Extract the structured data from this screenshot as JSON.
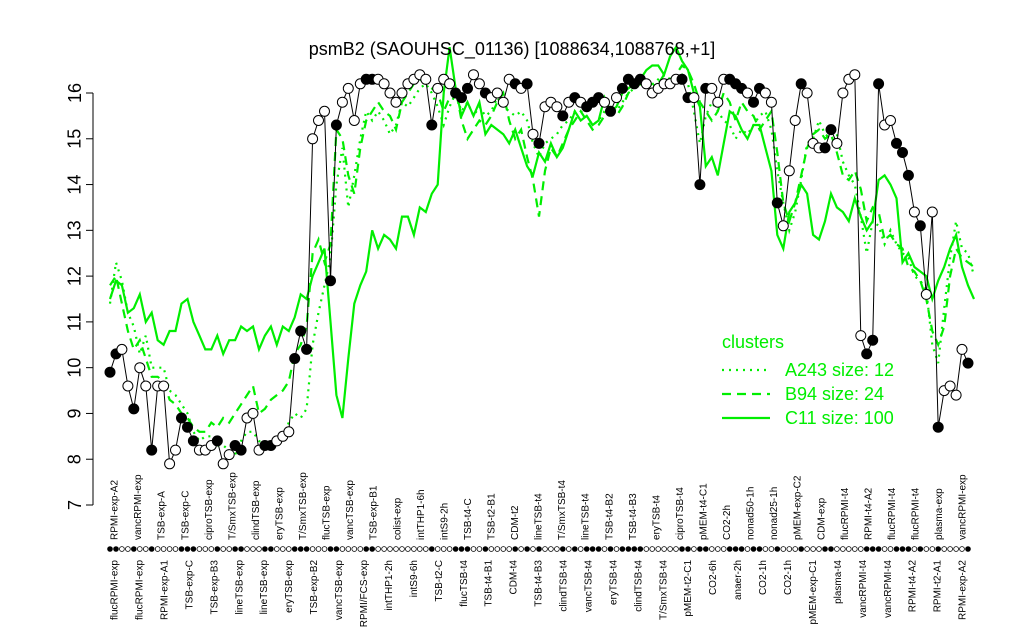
{
  "chart_data": {
    "type": "line",
    "title": "psmB2 (SAOUHSC_01136) [1088634,1088768,+1]",
    "ylim": [
      7,
      16.3
    ],
    "yticks": [
      7,
      8,
      9,
      10,
      11,
      12,
      13,
      14,
      15,
      16
    ],
    "grid": false,
    "legend": {
      "title": "clusters",
      "position": "right",
      "entries": [
        {
          "label": "A243 size: 12",
          "style": "dotted",
          "color": "#00ee00"
        },
        {
          "label": "B94 size: 24",
          "style": "dashed",
          "color": "#00ee00"
        },
        {
          "label": "C11 size: 100",
          "style": "solid",
          "color": "#00ee00"
        }
      ]
    },
    "labels_top": [
      "RPMI-exp-A2",
      "vancRPMI-exp",
      "TSB-exp-A",
      "TSB-exp-C",
      "ciproTSB-exp",
      "T/SmxTSB-exp",
      "clindTSB-exp",
      "eryTSB-exp",
      "T/SmxTSB-exp",
      "flucTSB-exp",
      "vancTSB-exp",
      "TSB-exp-B1",
      "colist-exp",
      "intTHP1-6h",
      "intS9-2h",
      "TSB-t4-C",
      "TSB-t2-B1",
      "CDM-t2",
      "lineTSB-t4",
      "T/SmxTSB-t4",
      "lineTSB-t4",
      "TSB-t4-B2",
      "TSB-t4-B3",
      "eryTSB-t4",
      "ciproTSB-t4",
      "pMEM-t4-C1",
      "CO2-2h",
      "nonad50-1h",
      "nonad25-1h",
      "pMEM-exp-C2",
      "CDM-exp",
      "flucRPMI-t4",
      "RPMI-t4-A2",
      "flucRPMI-t4",
      "flucRPMI-t4",
      "plasma-exp",
      "vancRPMI-exp"
    ],
    "labels_bottom": [
      "flucRPMI-exp",
      "flucRPMI-exp",
      "RPMI-exp-A1",
      "TSB-exp-C",
      "TSB-exp-B3",
      "lineTSB-exp",
      "lineTSB-exp",
      "eryTSB-exp",
      "TSB-exp-B2",
      "vancTSB-exp",
      "RPMI/FCS-exp",
      "intTHP1-2h",
      "intS9-6h",
      "TSB-t2-C",
      "flucTSB-t4",
      "TSB-t4-B1",
      "CDM-t4",
      "TSB-t4-B3",
      "clindTSB-t4",
      "vancTSB-t4",
      "eryTSB-t4",
      "clindTSB-t4",
      "T/SmxTSB-t4",
      "pMEM-t2-C1",
      "CO2-6h",
      "anaer-2h",
      "CO2-1h",
      "CO2-1h",
      "pMEM-exp-C1",
      "plasma-t4",
      "vancRPMI-t4",
      "vancRPMI-t4",
      "RPMI-t4-A2",
      "RPMI-t2-A1",
      "RPMI-exp-A2"
    ],
    "series": [
      {
        "cluster": "psmB2",
        "style": "points-line",
        "values": [
          9.9,
          10.3,
          10.4,
          9.6,
          9.1,
          10.0,
          9.6,
          8.2,
          9.6,
          9.6,
          7.9,
          8.2,
          8.9,
          8.7,
          8.4,
          8.2,
          8.2,
          8.3,
          8.4,
          7.9,
          8.1,
          8.3,
          8.2,
          8.9,
          9.0,
          8.2,
          8.3,
          8.3,
          8.4,
          8.5,
          8.6,
          10.2,
          10.8,
          10.4,
          15.0,
          15.4,
          15.6,
          11.9,
          15.3,
          15.8,
          16.1,
          15.4,
          16.2,
          16.3,
          16.3,
          16.3,
          16.2,
          16.0,
          15.8,
          16.0,
          16.2,
          16.3,
          16.4,
          16.3,
          15.3,
          16.1,
          16.3,
          16.2,
          16.0,
          15.9,
          16.1,
          16.4,
          16.2,
          16.0,
          15.9,
          16.0,
          15.8,
          16.3,
          16.2,
          16.1,
          16.2,
          15.1,
          14.9,
          15.7,
          15.8,
          15.7,
          15.5,
          15.8,
          15.9,
          15.8,
          15.7,
          15.8,
          15.9,
          15.8,
          15.6,
          15.9,
          16.1,
          16.3,
          16.2,
          16.3,
          16.2,
          16.0,
          16.1,
          16.2,
          16.2,
          16.3,
          16.3,
          15.9,
          15.9,
          14.0,
          16.1,
          16.1,
          15.8,
          16.3,
          16.3,
          16.2,
          16.1,
          16.0,
          15.8,
          16.1,
          16.0,
          15.8,
          13.6,
          13.1,
          14.3,
          15.4,
          16.2,
          16.0,
          14.9,
          14.8,
          14.8,
          15.2,
          14.9,
          16.0,
          16.3,
          16.4,
          10.7,
          10.3,
          10.6,
          16.2,
          15.3,
          15.4,
          14.9,
          14.7,
          14.2,
          13.4,
          13.1,
          11.6,
          13.4,
          8.7,
          9.5,
          9.6,
          9.4,
          10.4,
          10.1
        ],
        "filled": [
          1,
          1,
          0,
          0,
          1,
          0,
          0,
          1,
          0,
          0,
          0,
          0,
          1,
          1,
          1,
          0,
          0,
          0,
          1,
          0,
          0,
          1,
          1,
          0,
          0,
          0,
          1,
          1,
          0,
          0,
          0,
          1,
          1,
          1,
          0,
          0,
          0,
          1,
          1,
          0,
          0,
          0,
          0,
          1,
          1,
          0,
          0,
          0,
          0,
          0,
          0,
          0,
          0,
          0,
          1,
          0,
          0,
          0,
          1,
          1,
          1,
          0,
          0,
          1,
          0,
          0,
          0,
          0,
          1,
          0,
          1,
          0,
          1,
          0,
          0,
          0,
          1,
          0,
          1,
          0,
          1,
          1,
          1,
          0,
          1,
          0,
          1,
          1,
          1,
          1,
          0,
          0,
          0,
          0,
          0,
          0,
          1,
          1,
          0,
          1,
          1,
          0,
          0,
          0,
          1,
          1,
          1,
          0,
          1,
          1,
          0,
          0,
          1,
          0,
          0,
          0,
          1,
          0,
          0,
          0,
          1,
          1,
          0,
          0,
          0,
          0,
          0,
          1,
          1,
          1,
          0,
          0,
          1,
          1,
          1,
          0,
          1,
          0,
          0,
          1,
          0,
          0,
          0,
          0,
          1,
          0
        ]
      },
      {
        "name": "A243 size: 12",
        "style": "dotted",
        "values": [
          11.4,
          12.3,
          11.9,
          11.2,
          10.9,
          10.3,
          10.7,
          10.0,
          10.0,
          10.0,
          9.5,
          9.4,
          9.2,
          9.0,
          8.6,
          8.4,
          8.5,
          8.5,
          8.3,
          8.3,
          8.2,
          8.1,
          8.4,
          8.6,
          8.6,
          8.4,
          8.3,
          8.3,
          8.4,
          8.5,
          8.8,
          9.0,
          8.9,
          9.1,
          10.5,
          11.2,
          11.8,
          12.4,
          14.0,
          14.8,
          13.5,
          14.2,
          15.0,
          15.6,
          15.4,
          15.6,
          15.4,
          15.1,
          15.3,
          15.8,
          15.7,
          15.9,
          16.1,
          16.2,
          16.0,
          15.7,
          15.3,
          15.7,
          16.0,
          15.6,
          15.8,
          15.5,
          15.7,
          15.5,
          15.6,
          15.9,
          15.7,
          15.6,
          15.5,
          15.6,
          15.4,
          14.9,
          14.6,
          14.9,
          15.0,
          15.1,
          15.3,
          15.4,
          15.6,
          15.6,
          15.5,
          15.3,
          15.4,
          15.6,
          15.7,
          15.6,
          15.8,
          16.0,
          16.1,
          16.2,
          16.2,
          16.1,
          16.3,
          16.4,
          16.3,
          16.3,
          16.4,
          16.2,
          15.6,
          14.9,
          15.5,
          15.8,
          15.6,
          15.4,
          15.3,
          15.0,
          15.2,
          15.1,
          15.3,
          15.5,
          15.6,
          15.2,
          14.3,
          13.6,
          13.0,
          13.4,
          14.1,
          14.9,
          15.0,
          15.4,
          15.1,
          15.0,
          15.1,
          14.5,
          14.2,
          14.0,
          13.3,
          12.5,
          13.2,
          13.1,
          12.7,
          13.0,
          12.7,
          12.5,
          12.4,
          12.0,
          11.9,
          11.7,
          10.5,
          10.1,
          11.3,
          12.4,
          13.2,
          12.6,
          12.5,
          12.0
        ]
      },
      {
        "name": "B94 size: 24",
        "style": "dashed",
        "values": [
          11.8,
          12.0,
          11.4,
          10.8,
          10.4,
          10.6,
          10.2,
          9.8,
          9.8,
          9.7,
          9.3,
          9.2,
          9.0,
          8.9,
          8.7,
          8.6,
          8.6,
          8.8,
          8.7,
          8.9,
          8.8,
          9.0,
          9.2,
          9.4,
          9.6,
          9.0,
          9.1,
          9.3,
          9.4,
          9.5,
          9.7,
          10.3,
          10.5,
          10.9,
          12.5,
          12.8,
          12.3,
          12.7,
          15.2,
          15.0,
          14.2,
          13.8,
          14.8,
          15.4,
          15.6,
          15.8,
          15.6,
          15.5,
          15.2,
          15.8,
          16.0,
          16.2,
          16.3,
          16.2,
          16.1,
          16.0,
          15.6,
          15.9,
          16.1,
          15.4,
          15.0,
          15.2,
          15.4,
          15.3,
          15.5,
          15.8,
          16.0,
          15.4,
          15.0,
          15.2,
          14.6,
          14.1,
          13.3,
          14.3,
          14.8,
          14.6,
          14.9,
          15.2,
          15.4,
          15.6,
          15.4,
          15.2,
          15.3,
          15.5,
          15.6,
          15.5,
          15.7,
          16.0,
          16.1,
          16.2,
          16.1,
          16.2,
          16.2,
          16.4,
          16.3,
          16.4,
          16.6,
          16.5,
          16.2,
          15.8,
          15.6,
          15.4,
          15.6,
          16.0,
          15.8,
          15.4,
          15.8,
          15.6,
          15.5,
          15.2,
          15.4,
          15.6,
          14.7,
          13.6,
          13.2,
          13.6,
          14.2,
          14.8,
          15.1,
          15.2,
          15.0,
          15.1,
          14.7,
          14.2,
          14.1,
          14.3,
          13.9,
          13.2,
          13.5,
          13.4,
          12.8,
          12.9,
          12.7,
          12.6,
          12.2,
          12.1,
          11.9,
          11.5,
          10.8,
          10.5,
          10.9,
          12.0,
          12.6,
          12.4,
          12.3,
          12.2
        ]
      },
      {
        "name": "C11 size: 100",
        "style": "solid",
        "values": [
          11.5,
          11.9,
          11.8,
          11.2,
          11.3,
          11.6,
          11.0,
          11.2,
          10.6,
          10.5,
          10.8,
          10.8,
          11.4,
          11.5,
          11.0,
          10.7,
          10.4,
          10.4,
          10.7,
          10.3,
          10.6,
          10.6,
          10.9,
          10.8,
          10.9,
          10.4,
          10.7,
          10.9,
          10.5,
          10.9,
          10.8,
          11.1,
          11.6,
          11.5,
          12.0,
          12.3,
          12.6,
          11.0,
          9.4,
          8.9,
          10.2,
          11.4,
          11.8,
          12.1,
          13.0,
          12.6,
          12.9,
          12.8,
          12.6,
          13.3,
          13.3,
          12.9,
          13.5,
          13.4,
          13.8,
          14.0,
          16.0,
          17.0,
          16.1,
          15.5,
          15.8,
          15.5,
          15.8,
          15.1,
          15.3,
          15.2,
          15.1,
          14.9,
          15.2,
          14.8,
          14.4,
          14.2,
          14.7,
          14.5,
          14.9,
          14.6,
          14.8,
          15.2,
          15.6,
          15.4,
          15.5,
          15.3,
          15.4,
          15.9,
          15.6,
          15.7,
          16.0,
          16.1,
          16.2,
          16.3,
          16.5,
          16.6,
          16.6,
          16.4,
          16.8,
          17.0,
          16.7,
          16.5,
          16.0,
          15.7,
          14.4,
          14.6,
          14.2,
          14.9,
          15.6,
          15.5,
          15.2,
          15.0,
          15.3,
          15.3,
          14.8,
          14.3,
          12.9,
          12.6,
          13.4,
          13.6,
          14.0,
          13.8,
          12.9,
          12.8,
          13.2,
          13.8,
          13.5,
          13.4,
          13.2,
          13.7,
          13.3,
          13.0,
          13.2,
          14.1,
          14.2,
          14.0,
          13.7,
          12.3,
          12.5,
          12.2,
          12.1,
          12.0,
          11.5,
          11.9,
          12.2,
          12.6,
          12.9,
          12.2,
          11.8,
          11.5
        ]
      }
    ]
  }
}
